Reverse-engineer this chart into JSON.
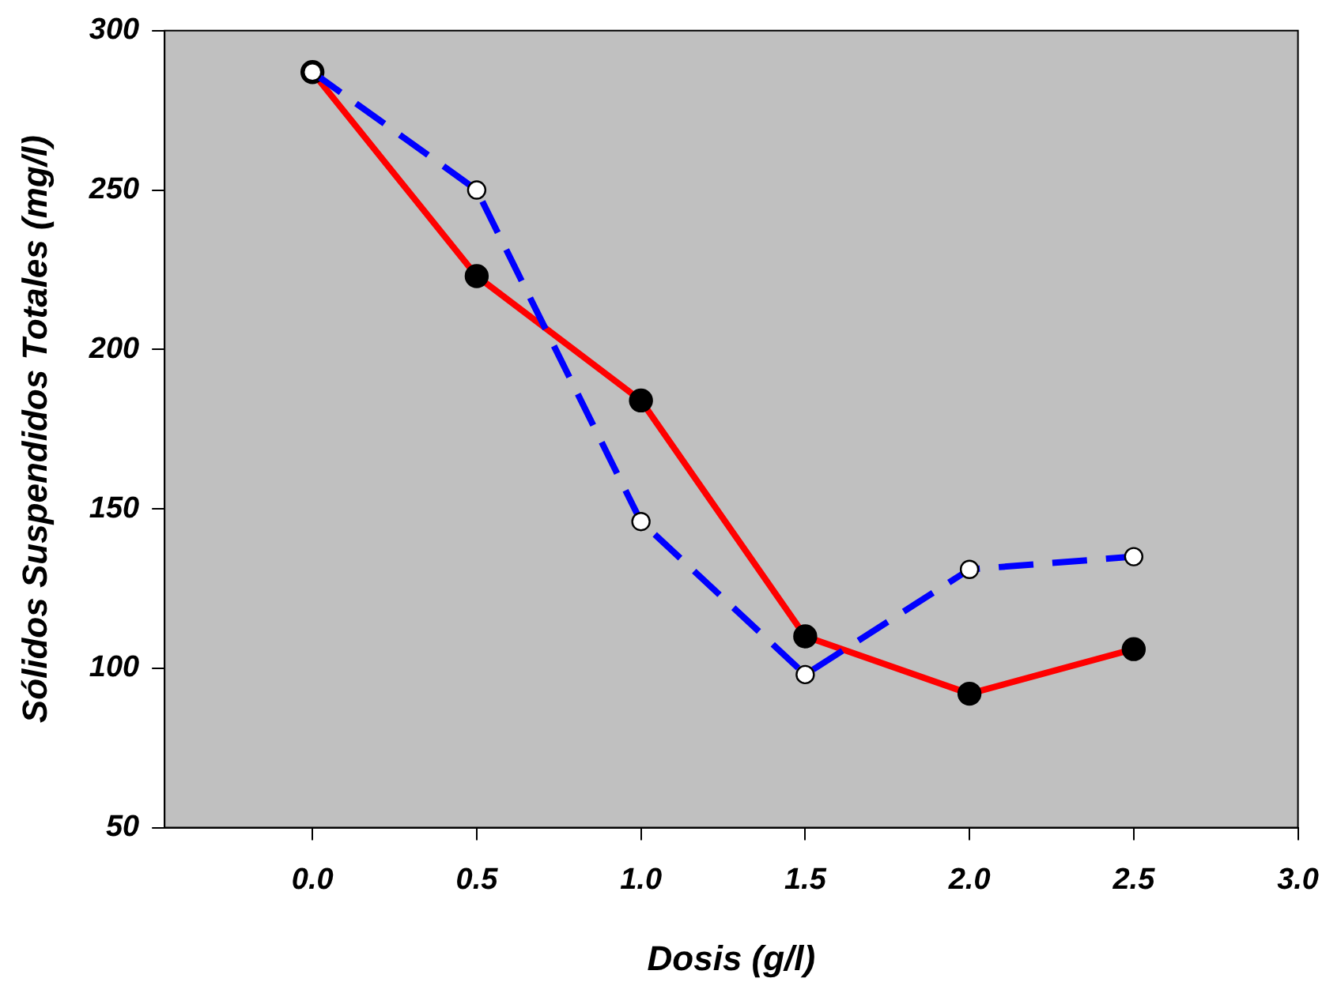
{
  "chart_data": {
    "type": "line",
    "xlabel": "Dosis (g/l)",
    "ylabel": "Sólidos Suspendidos Totales (mg/l)",
    "x": [
      0,
      0.5,
      1,
      1.5,
      2,
      2.5
    ],
    "series": [
      {
        "color": "#ff0000",
        "line_style": "solid",
        "values": [
          287,
          223,
          184,
          110,
          92,
          106
        ]
      },
      {
        "color": "#0000ff",
        "line_style": "dashed",
        "values": [
          287,
          250,
          146,
          98,
          131,
          135
        ]
      }
    ],
    "xlim": [
      -0.45,
      3
    ],
    "xticks": [
      {
        "value": 0,
        "label": "0.0"
      },
      {
        "value": 0.5,
        "label": "0.5"
      },
      {
        "value": 1,
        "label": "1.0"
      },
      {
        "value": 1.5,
        "label": "1.5"
      },
      {
        "value": 2,
        "label": "2.0"
      },
      {
        "value": 2.5,
        "label": "2.5"
      },
      {
        "value": 3,
        "label": "3.0"
      }
    ],
    "ylim": [
      50,
      300
    ],
    "yticks": [
      50,
      100,
      150,
      200,
      250,
      300
    ],
    "grid": false,
    "legend": false,
    "marker": "circle"
  }
}
